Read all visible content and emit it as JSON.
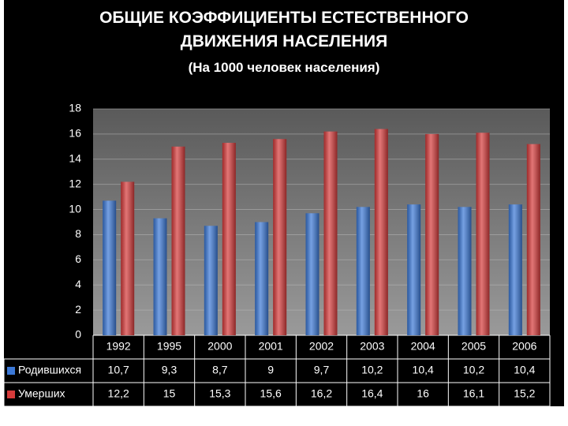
{
  "chart_data": {
    "type": "bar",
    "title": "ОБЩИЕ КОЭФФИЦИЕНТЫ ЕСТЕСТВЕННОГО ДВИЖЕНИЯ НАСЕЛЕНИЯ",
    "subtitle": "(На 1000 человек населения)",
    "categories": [
      "1992",
      "1995",
      "2000",
      "2001",
      "2002",
      "2003",
      "2004",
      "2005",
      "2006"
    ],
    "series": [
      {
        "name": "Родившихся",
        "color": "#3b78d6",
        "values": [
          10.7,
          9.3,
          8.7,
          9,
          9.7,
          10.2,
          10.4,
          10.2,
          10.4
        ],
        "value_labels": [
          "10,7",
          "9,3",
          "8,7",
          "9",
          "9,7",
          "10,2",
          "10,4",
          "10,2",
          "10,4"
        ]
      },
      {
        "name": "Умерших",
        "color": "#d63b3b",
        "values": [
          12.2,
          15,
          15.3,
          15.6,
          16.2,
          16.4,
          16,
          16.1,
          15.2
        ],
        "value_labels": [
          "12,2",
          "15",
          "15,3",
          "15,6",
          "16,2",
          "16,4",
          "16",
          "16,1",
          "15,2"
        ]
      }
    ],
    "ylim": [
      0,
      18
    ],
    "yticks": [
      0,
      2,
      4,
      6,
      8,
      10,
      12,
      14,
      16,
      18
    ],
    "grid": true
  }
}
